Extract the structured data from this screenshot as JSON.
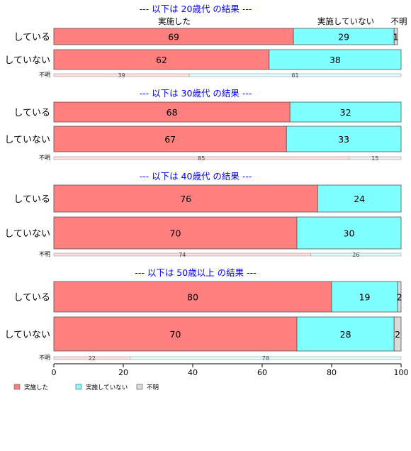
{
  "chart_data": {
    "type": "bar",
    "orientation": "horizontal",
    "stacked": true,
    "percent_scale": true,
    "xlim": [
      0,
      100
    ],
    "x_ticks": [
      "0",
      "20",
      "40",
      "60",
      "80",
      "100"
    ],
    "legend": {
      "position": "bottom-left",
      "items": [
        {
          "name": "実施した",
          "color": "#ff7f7f"
        },
        {
          "name": "実施していない",
          "color": "#7fffff"
        },
        {
          "name": "不明",
          "color": "#d9d9d9"
        }
      ]
    },
    "top_category_labels": [
      "実施した",
      "実施していない",
      "不明"
    ],
    "panels": [
      {
        "title": "--- 以下は 20歳代 の結果 ---",
        "rows": [
          {
            "label": "している",
            "values": [
              69,
              29,
              1
            ],
            "labels": [
              "69",
              "29",
              "1"
            ]
          },
          {
            "label": "していない",
            "values": [
              62,
              38,
              0
            ],
            "labels": [
              "62",
              "38",
              ""
            ]
          }
        ],
        "unknown": {
          "label": "不明",
          "values": [
            39,
            61,
            0
          ],
          "labels": [
            "39",
            "61",
            ""
          ]
        }
      },
      {
        "title": "--- 以下は 30歳代 の結果 ---",
        "rows": [
          {
            "label": "している",
            "values": [
              68,
              32,
              0
            ],
            "labels": [
              "68",
              "32",
              ""
            ]
          },
          {
            "label": "していない",
            "values": [
              67,
              33,
              0
            ],
            "labels": [
              "67",
              "33",
              ""
            ]
          }
        ],
        "unknown": {
          "label": "不明",
          "values": [
            85,
            0,
            15
          ],
          "labels": [
            "85",
            "",
            "15"
          ]
        }
      },
      {
        "title": "--- 以下は 40歳代 の結果 ---",
        "rows": [
          {
            "label": "している",
            "values": [
              76,
              24,
              0
            ],
            "labels": [
              "76",
              "24",
              ""
            ]
          },
          {
            "label": "していない",
            "values": [
              70,
              30,
              0
            ],
            "labels": [
              "70",
              "30",
              ""
            ]
          }
        ],
        "unknown": {
          "label": "不明",
          "values": [
            74,
            26,
            0
          ],
          "labels": [
            "74",
            "26",
            ""
          ]
        }
      },
      {
        "title": "--- 以下は 50歳以上 の結果 ---",
        "rows": [
          {
            "label": "している",
            "values": [
              80,
              19,
              2
            ],
            "labels": [
              "80",
              "19",
              "2"
            ]
          },
          {
            "label": "していない",
            "values": [
              70,
              28,
              2
            ],
            "labels": [
              "70",
              "28",
              "2"
            ]
          }
        ],
        "unknown": {
          "label": "不明",
          "values": [
            22,
            78,
            0
          ],
          "labels": [
            "22",
            "78",
            ""
          ]
        }
      }
    ],
    "colors": {
      "title": "#0000ff",
      "bar_border": "#555555",
      "unknown_fills": [
        "#ffdede",
        "#dcffff",
        "#eeeeee"
      ]
    }
  }
}
